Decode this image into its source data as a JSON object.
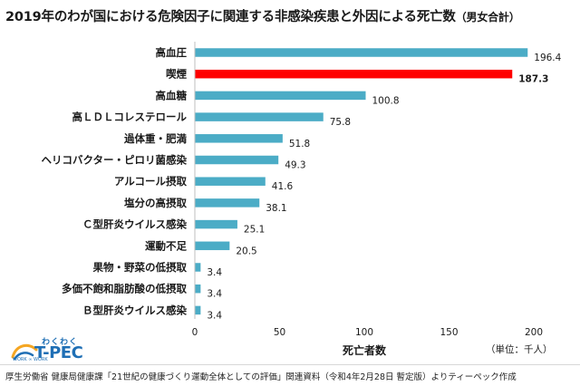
{
  "title": {
    "main": "2019年のわが国における危険因子に関連する非感染疾患と外因による死亡数",
    "suffix": "（男女合計）"
  },
  "unit_label": "（単位：千人）",
  "logo": {
    "top": "わくわく",
    "main": "T-PEC",
    "sub": "WORK ∞ WORK"
  },
  "footer": "厚生労働省 健康局健康課「21世紀の健康づくり運動全体としての評価」関連資料（令和4年2月28日 暫定版）よりティーペック作成",
  "colors": {
    "bar": "#4bacc6",
    "highlight": "#ff0000"
  },
  "chart_data": {
    "type": "bar",
    "orientation": "horizontal",
    "categories": [
      "高血圧",
      "喫煙",
      "高血糖",
      "高ＬＤＬコレステロール",
      "過体重・肥満",
      "ヘリコバクター・ピロリ菌感染",
      "アルコール摂取",
      "塩分の高摂取",
      "Ｃ型肝炎ウイルス感染",
      "運動不足",
      "果物・野菜の低摂取",
      "多価不飽和脂肪酸の低摂取",
      "Ｂ型肝炎ウイルス感染"
    ],
    "values": [
      196.4,
      187.3,
      100.8,
      75.8,
      51.8,
      49.3,
      41.6,
      38.1,
      25.1,
      20.5,
      3.4,
      3.4,
      3.4
    ],
    "value_labels": [
      "196.4",
      "187.3",
      "100.8",
      "75.8",
      "51.8",
      "49.3",
      "41.6",
      "38.1",
      "25.1",
      "20.5",
      "3.4",
      "3.4",
      "3.4"
    ],
    "highlight_index": 1,
    "xlabel": "死亡者数",
    "xlim": [
      0,
      200
    ],
    "xticks": [
      0,
      50,
      100,
      150,
      200
    ],
    "grid": false,
    "legend": "none"
  }
}
